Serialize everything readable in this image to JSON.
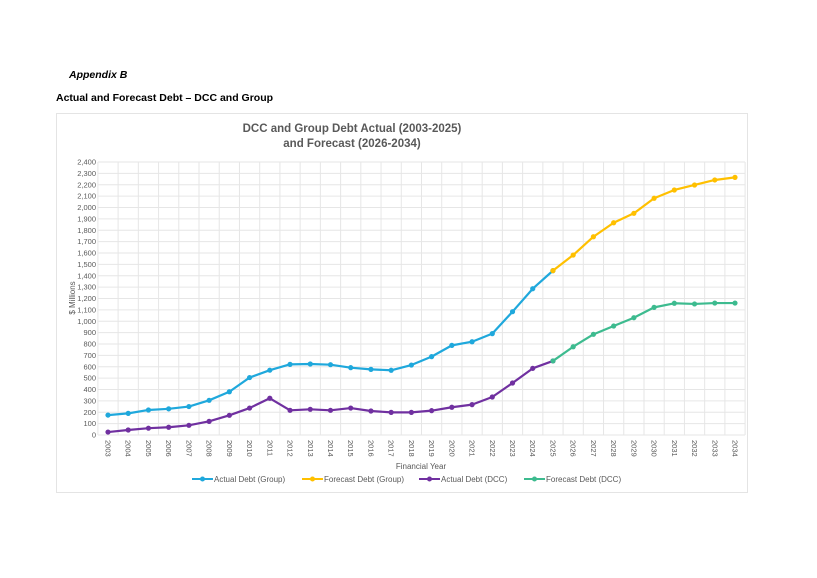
{
  "document": {
    "appendix_label": "Appendix B",
    "heading": "Actual and Forecast Debt – DCC and Group"
  },
  "chart_data": {
    "type": "line",
    "title_line1": "DCC and Group Debt Actual (2003-2025)",
    "title_line2": "and Forecast (2026-2034)",
    "xlabel": "Financial Year",
    "ylabel": "$ Millions",
    "ylim": [
      0,
      2400
    ],
    "ytick_step": 100,
    "yticks": [
      "0",
      "100",
      "200",
      "300",
      "400",
      "500",
      "600",
      "700",
      "800",
      "900",
      "1,000",
      "1,100",
      "1,200",
      "1,300",
      "1,400",
      "1,500",
      "1,600",
      "1,700",
      "1,800",
      "1,900",
      "2,000",
      "2,100",
      "2,200",
      "2,300",
      "2,400"
    ],
    "categories": [
      "2003",
      "2004",
      "2005",
      "2006",
      "2007",
      "2008",
      "2009",
      "2010",
      "2011",
      "2012",
      "2013",
      "2014",
      "2015",
      "2016",
      "2017",
      "2018",
      "2019",
      "2020",
      "2021",
      "2022",
      "2023",
      "2024",
      "2025",
      "2026",
      "2027",
      "2028",
      "2029",
      "2030",
      "2031",
      "2032",
      "2033",
      "2034"
    ],
    "grid": true,
    "legend_position": "bottom",
    "series": [
      {
        "name": "Actual Debt (Group)",
        "color": "#1fa8dc",
        "start": "2003",
        "values": [
          175,
          190,
          220,
          230,
          250,
          305,
          380,
          505,
          570,
          621,
          624,
          618,
          592,
          577,
          569,
          615,
          689,
          788,
          820,
          891,
          1084,
          1286,
          1445
        ]
      },
      {
        "name": "Forecast Debt (Group)",
        "color": "#ffc000",
        "start": "2025",
        "values": [
          1445,
          1582,
          1743,
          1866,
          1949,
          2081,
          2154,
          2198,
          2242,
          2265
        ]
      },
      {
        "name": "Actual Debt (DCC)",
        "color": "#7030a0",
        "start": "2003",
        "values": [
          26,
          44,
          60,
          68,
          85,
          120,
          173,
          237,
          323,
          217,
          226,
          217,
          237,
          211,
          199,
          199,
          214,
          244,
          267,
          334,
          457,
          586,
          651
        ]
      },
      {
        "name": "Forecast Debt (DCC)",
        "color": "#3dbb8f",
        "start": "2025",
        "values": [
          651,
          776,
          885,
          958,
          1031,
          1122,
          1158,
          1152,
          1160,
          1160
        ]
      }
    ]
  }
}
